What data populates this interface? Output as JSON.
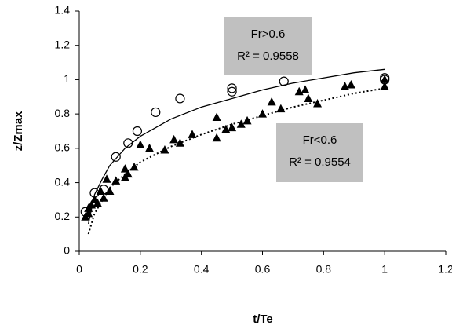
{
  "chart_data": {
    "type": "scatter",
    "x_label": "t/Te",
    "y_label": "z/Zmax",
    "xlim": [
      0,
      1.2
    ],
    "xticks": [
      0,
      0.2,
      0.4,
      0.6,
      0.8,
      1,
      1.2
    ],
    "ylim": [
      0,
      1.4
    ],
    "yticks": [
      0,
      0.2,
      0.4,
      0.6,
      0.8,
      1,
      1.2,
      1.4
    ],
    "grid": false,
    "series": [
      {
        "marker": "circle",
        "color": "#000000",
        "x": [
          0.02,
          0.05,
          0.08,
          0.12,
          0.16,
          0.19,
          0.25,
          0.33,
          0.5,
          0.5,
          0.67,
          1.0,
          1.0
        ],
        "values": [
          0.23,
          0.34,
          0.36,
          0.55,
          0.63,
          0.7,
          0.81,
          0.89,
          0.95,
          0.93,
          0.99,
          1.0,
          1.01
        ]
      },
      {
        "marker": "triangle",
        "color": "#000000",
        "x": [
          0.02,
          0.03,
          0.03,
          0.04,
          0.05,
          0.06,
          0.07,
          0.08,
          0.09,
          0.1,
          0.12,
          0.15,
          0.15,
          0.16,
          0.18,
          0.2,
          0.23,
          0.28,
          0.31,
          0.33,
          0.37,
          0.45,
          0.45,
          0.48,
          0.5,
          0.53,
          0.55,
          0.6,
          0.63,
          0.66,
          0.72,
          0.74,
          0.75,
          0.78,
          0.87,
          0.89,
          1.0,
          1.0
        ],
        "values": [
          0.2,
          0.22,
          0.25,
          0.27,
          0.3,
          0.28,
          0.35,
          0.31,
          0.42,
          0.35,
          0.41,
          0.48,
          0.43,
          0.45,
          0.49,
          0.62,
          0.6,
          0.59,
          0.65,
          0.63,
          0.68,
          0.78,
          0.66,
          0.71,
          0.72,
          0.74,
          0.76,
          0.8,
          0.87,
          0.83,
          0.93,
          0.94,
          0.89,
          0.86,
          0.96,
          0.97,
          0.96,
          1.0
        ]
      },
      {
        "marker": "line",
        "line_style": "solid",
        "color": "#000000",
        "x": [
          0.03,
          0.05,
          0.075,
          0.1,
          0.15,
          0.2,
          0.3,
          0.4,
          0.5,
          0.6,
          0.7,
          0.8,
          0.9,
          1.0
        ],
        "values": [
          0.16,
          0.33,
          0.42,
          0.5,
          0.6,
          0.67,
          0.77,
          0.84,
          0.89,
          0.94,
          0.98,
          1.01,
          1.04,
          1.06
        ]
      },
      {
        "marker": "line",
        "line_style": "dotted",
        "color": "#000000",
        "x": [
          0.03,
          0.05,
          0.1,
          0.15,
          0.2,
          0.3,
          0.4,
          0.5,
          0.6,
          0.7,
          0.8,
          0.9,
          1.0
        ],
        "values": [
          0.1,
          0.22,
          0.37,
          0.45,
          0.52,
          0.61,
          0.68,
          0.74,
          0.79,
          0.84,
          0.88,
          0.92,
          0.95
        ]
      }
    ],
    "annotations": [
      {
        "lines": [
          "Fr>0.6",
          "R² = 0.9558"
        ]
      },
      {
        "lines": [
          "Fr<0.6",
          "R² = 0.9554"
        ]
      }
    ]
  }
}
